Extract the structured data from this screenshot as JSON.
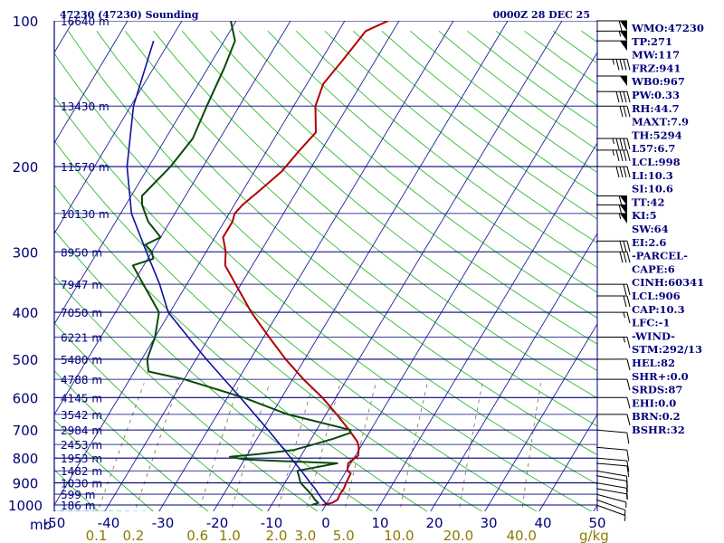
{
  "header": {
    "station": "47230 (47230) Sounding",
    "time": "0000Z 28 DEC 25",
    "mb_label": "mb",
    "gkg_label": "g/kg"
  },
  "colors": {
    "isobar": "#00007a",
    "isotherm": "#1f1f9a",
    "dry_adiabat": "#33b833",
    "moist_adiabat": "#5ab0e0",
    "mixing_ratio": "#8a7a55",
    "temperature": "#b00000",
    "dewpoint": "#0a4a0a",
    "parcel": "#1010a0",
    "text": "#00007a",
    "mixing_label": "#8a7a00"
  },
  "chart_data": {
    "type": "line",
    "diagram": "skew-t log-p",
    "xlim": [
      -50,
      50
    ],
    "ylim": [
      1000,
      100
    ],
    "pressure_ticks": [
      100,
      200,
      300,
      400,
      500,
      600,
      700,
      800,
      900,
      1000
    ],
    "temperature_ticks": [
      -50,
      -40,
      -30,
      -20,
      -10,
      0,
      10,
      20,
      30,
      40,
      50
    ],
    "temperature_tick_labels": [
      "-50",
      "-40",
      "-30",
      "-20",
      "-10",
      "0",
      "10",
      "20",
      "30",
      "40",
      "50"
    ],
    "mixing_ratio_lines": [
      0.1,
      0.2,
      0.6,
      1.0,
      2.0,
      3.0,
      5.0,
      10.0,
      20.0,
      40.0
    ],
    "mixing_ratio_labels": [
      "0.1",
      "0.2",
      "0.6",
      "1.0",
      "2.0",
      "3.0",
      "5.0",
      "10.0",
      "20.0",
      "40.0"
    ],
    "height_labels": [
      {
        "p": 100,
        "text": "16640 m"
      },
      {
        "p": 150,
        "text": "13430 m"
      },
      {
        "p": 200,
        "text": "11570 m"
      },
      {
        "p": 250,
        "text": "10130 m"
      },
      {
        "p": 300,
        "text": "8950 m"
      },
      {
        "p": 350,
        "text": "7947 m"
      },
      {
        "p": 400,
        "text": "7050 m"
      },
      {
        "p": 450,
        "text": "6221 m"
      },
      {
        "p": 500,
        "text": "5480 m"
      },
      {
        "p": 550,
        "text": "4788 m"
      },
      {
        "p": 600,
        "text": "4145 m"
      },
      {
        "p": 650,
        "text": "3542 m"
      },
      {
        "p": 700,
        "text": "2984 m"
      },
      {
        "p": 750,
        "text": "2453 m"
      },
      {
        "p": 800,
        "text": "1953 m"
      },
      {
        "p": 850,
        "text": "1482 m"
      },
      {
        "p": 900,
        "text": "1030 m"
      },
      {
        "p": 950,
        "text": "599 m"
      },
      {
        "p": 1000,
        "text": "186 m"
      }
    ],
    "series": [
      {
        "role": "temperature",
        "points": [
          [
            1000,
            -0.6
          ],
          [
            990,
            0.9
          ],
          [
            975,
            1.6
          ],
          [
            950,
            1.4
          ],
          [
            925,
            1.5
          ],
          [
            900,
            1.3
          ],
          [
            860,
            1.1
          ],
          [
            850,
            0.2
          ],
          [
            820,
            -0.5
          ],
          [
            790,
            0.5
          ],
          [
            760,
            -0.3
          ],
          [
            740,
            -1.2
          ],
          [
            700,
            -4.0
          ],
          [
            650,
            -8.0
          ],
          [
            600,
            -12.5
          ],
          [
            550,
            -18.0
          ],
          [
            500,
            -23.5
          ],
          [
            450,
            -29.0
          ],
          [
            400,
            -35.0
          ],
          [
            350,
            -41.0
          ],
          [
            320,
            -45.0
          ],
          [
            300,
            -46.4
          ],
          [
            280,
            -48.5
          ],
          [
            260,
            -48.5
          ],
          [
            250,
            -49.0
          ],
          [
            240,
            -48.5
          ],
          [
            225,
            -47.0
          ],
          [
            205,
            -45.0
          ],
          [
            185,
            -44.0
          ],
          [
            170,
            -43.0
          ],
          [
            150,
            -46.0
          ],
          [
            135,
            -47.0
          ],
          [
            120,
            -46.0
          ],
          [
            105,
            -45.0
          ],
          [
            100,
            -42.0
          ]
        ]
      },
      {
        "role": "dewpoint",
        "points": [
          [
            1000,
            -2.6
          ],
          [
            990,
            -1.6
          ],
          [
            975,
            -2.6
          ],
          [
            950,
            -3.9
          ],
          [
            900,
            -7.1
          ],
          [
            850,
            -9.0
          ],
          [
            820,
            -2.5
          ],
          [
            810,
            -15.0
          ],
          [
            805,
            -20.0
          ],
          [
            795,
            -23.0
          ],
          [
            785,
            -18.0
          ],
          [
            770,
            -12.0
          ],
          [
            750,
            -9.0
          ],
          [
            730,
            -6.0
          ],
          [
            710,
            -3.5
          ],
          [
            700,
            -3.7
          ],
          [
            650,
            -17.0
          ],
          [
            600,
            -27.0
          ],
          [
            550,
            -40.0
          ],
          [
            530,
            -47.4
          ],
          [
            500,
            -49.0
          ],
          [
            450,
            -50.0
          ],
          [
            400,
            -52.0
          ],
          [
            350,
            -58.0
          ],
          [
            320,
            -62.0
          ],
          [
            310,
            -59.0
          ],
          [
            300,
            -60.0
          ],
          [
            290,
            -62.0
          ],
          [
            280,
            -60.0
          ],
          [
            260,
            -64.0
          ],
          [
            240,
            -67.0
          ],
          [
            230,
            -68.0
          ],
          [
            200,
            -66.0
          ],
          [
            175,
            -65.0
          ],
          [
            150,
            -66.0
          ],
          [
            125,
            -67.0
          ],
          [
            110,
            -68.0
          ],
          [
            100,
            -71.0
          ]
        ]
      },
      {
        "role": "parcel",
        "points": [
          [
            1000,
            0.3
          ],
          [
            975,
            -1.2
          ],
          [
            950,
            -2.5
          ],
          [
            925,
            -3.8
          ],
          [
            900,
            -5.3
          ],
          [
            850,
            -8.3
          ],
          [
            800,
            -11.6
          ],
          [
            750,
            -15.1
          ],
          [
            700,
            -18.9
          ],
          [
            650,
            -23.1
          ],
          [
            600,
            -27.6
          ],
          [
            550,
            -32.6
          ],
          [
            500,
            -38.1
          ],
          [
            450,
            -43.9
          ],
          [
            400,
            -50.3
          ],
          [
            350,
            -55.0
          ],
          [
            300,
            -61.0
          ],
          [
            250,
            -68.0
          ],
          [
            200,
            -74.0
          ],
          [
            150,
            -79.5
          ],
          [
            110,
            -83.0
          ]
        ]
      }
    ],
    "wind_barbs": [
      {
        "p": 1000,
        "dir": 290,
        "kt": 5
      },
      {
        "p": 975,
        "dir": 290,
        "kt": 5
      },
      {
        "p": 950,
        "dir": 285,
        "kt": 5
      },
      {
        "p": 925,
        "dir": 280,
        "kt": 5
      },
      {
        "p": 900,
        "dir": 280,
        "kt": 10
      },
      {
        "p": 870,
        "dir": 280,
        "kt": 10
      },
      {
        "p": 850,
        "dir": 280,
        "kt": 10
      },
      {
        "p": 820,
        "dir": 275,
        "kt": 10
      },
      {
        "p": 800,
        "dir": 275,
        "kt": 10
      },
      {
        "p": 760,
        "dir": 275,
        "kt": 10
      },
      {
        "p": 700,
        "dir": 275,
        "kt": 10
      },
      {
        "p": 650,
        "dir": 270,
        "kt": 10
      },
      {
        "p": 600,
        "dir": 270,
        "kt": 10
      },
      {
        "p": 550,
        "dir": 270,
        "kt": 10
      },
      {
        "p": 500,
        "dir": 270,
        "kt": 10
      },
      {
        "p": 450,
        "dir": 270,
        "kt": 15
      },
      {
        "p": 400,
        "dir": 270,
        "kt": 15
      },
      {
        "p": 370,
        "dir": 270,
        "kt": 20
      },
      {
        "p": 350,
        "dir": 270,
        "kt": 20
      },
      {
        "p": 300,
        "dir": 270,
        "kt": 30
      },
      {
        "p": 285,
        "dir": 270,
        "kt": 30
      },
      {
        "p": 250,
        "dir": 270,
        "kt": 55
      },
      {
        "p": 240,
        "dir": 270,
        "kt": 60
      },
      {
        "p": 230,
        "dir": 270,
        "kt": 60
      },
      {
        "p": 200,
        "dir": 270,
        "kt": 40
      },
      {
        "p": 185,
        "dir": 270,
        "kt": 45
      },
      {
        "p": 175,
        "dir": 270,
        "kt": 45
      },
      {
        "p": 150,
        "dir": 270,
        "kt": 30
      },
      {
        "p": 140,
        "dir": 270,
        "kt": 40
      },
      {
        "p": 130,
        "dir": 270,
        "kt": 50
      },
      {
        "p": 120,
        "dir": 270,
        "kt": 45
      },
      {
        "p": 110,
        "dir": 270,
        "kt": 50
      },
      {
        "p": 105,
        "dir": 270,
        "kt": 55
      },
      {
        "p": 100,
        "dir": 270,
        "kt": 60
      }
    ]
  },
  "indices": [
    "WMO:47230",
    "TP:271",
    "MW:117",
    "FRZ:941",
    "WB0:967",
    "PW:0.33",
    "RH:44.7",
    "MAXT:7.9",
    "TH:5294",
    "L57:6.7",
    "LCL:998",
    "LI:10.3",
    "SI:10.6",
    "TT:42",
    "KI:5",
    "SW:64",
    "EI:2.6",
    "-PARCEL-",
    "CAPE:6",
    "CINH:60341",
    "LCL:906",
    "CAP:10.3",
    "LFC:-1",
    "-WIND-",
    "STM:292/13",
    "HEL:82",
    "SHR+:0.0",
    "SRDS:87",
    "EHI:0.0",
    "BRN:0.2",
    "BSHR:32"
  ]
}
